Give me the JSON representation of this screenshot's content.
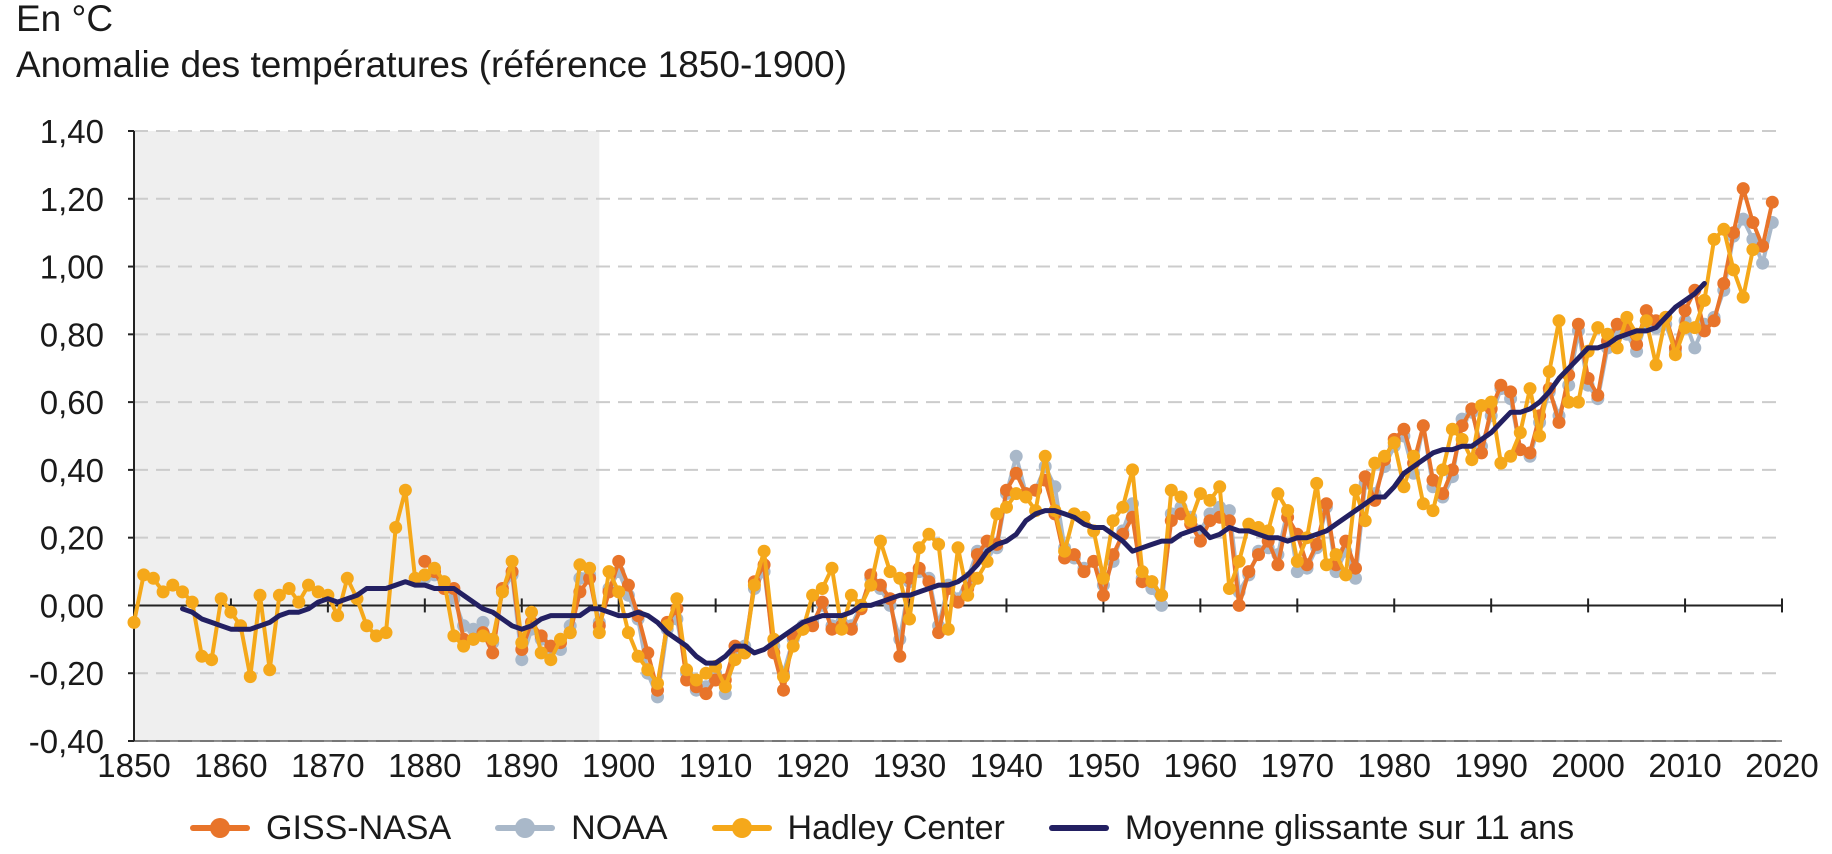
{
  "header": {
    "unit": "En °C",
    "title": "Anomalie des températures (référence 1850-1900)"
  },
  "legend": {
    "items": [
      {
        "label": "GISS-NASA",
        "color": "#e8742a",
        "marker": true
      },
      {
        "label": "NOAA",
        "color": "#a9b8c9",
        "marker": true
      },
      {
        "label": "Hadley Center",
        "color": "#f5a81a",
        "marker": true
      },
      {
        "label": "Moyenne glissante sur 11 ans",
        "color": "#232062",
        "marker": false
      }
    ]
  },
  "chart_data": {
    "type": "line",
    "title": "Anomalie des températures (référence 1850-1900)",
    "ylabel": "En °C",
    "xlim": [
      1850,
      2020
    ],
    "ylim": [
      -0.4,
      1.4
    ],
    "xticks": [
      1850,
      1860,
      1870,
      1880,
      1890,
      1900,
      1910,
      1920,
      1930,
      1940,
      1950,
      1960,
      1970,
      1980,
      1990,
      2000,
      2010,
      2020
    ],
    "xtick_labels": [
      "1850",
      "1860",
      "1870",
      "1880",
      "1890",
      "1900",
      "1910",
      "1920",
      "1930",
      "1940",
      "1950",
      "1960",
      "1970",
      "1980",
      "1990",
      "2000",
      "2010",
      "2020"
    ],
    "yticks": [
      -0.4,
      -0.2,
      0,
      0.2,
      0.4,
      0.6,
      0.8,
      1.0,
      1.2,
      1.4
    ],
    "ytick_labels": [
      "-0,40",
      "-0,20",
      "0,00",
      "0,20",
      "0,40",
      "0,60",
      "0,80",
      "1,00",
      "1,20",
      "1,40"
    ],
    "grid": "horizontal dashed",
    "legend_position": "bottom",
    "reference_period": [
      1850,
      1898
    ],
    "series": [
      {
        "name": "Hadley Center",
        "color": "#f5a81a",
        "x_start": 1850,
        "values": [
          -0.05,
          0.09,
          0.08,
          0.04,
          0.06,
          0.04,
          0.01,
          -0.15,
          -0.16,
          0.02,
          -0.02,
          -0.06,
          -0.21,
          0.03,
          -0.19,
          0.03,
          0.05,
          0.01,
          0.06,
          0.04,
          0.03,
          -0.03,
          0.08,
          0.02,
          -0.06,
          -0.09,
          -0.08,
          0.23,
          0.34,
          0.08,
          0.09,
          0.11,
          0.07,
          -0.09,
          -0.12,
          -0.1,
          -0.09,
          -0.1,
          0.04,
          0.13,
          -0.11,
          -0.02,
          -0.14,
          -0.16,
          -0.1,
          -0.08,
          0.12,
          0.11,
          -0.08,
          0.1,
          0.04,
          -0.08,
          -0.15,
          -0.19,
          -0.23,
          -0.06,
          0.02,
          -0.19,
          -0.22,
          -0.2,
          -0.18,
          -0.24,
          -0.16,
          -0.14,
          0.06,
          0.16,
          -0.1,
          -0.21,
          -0.12,
          -0.07,
          0.03,
          0.05,
          0.11,
          -0.07,
          0.03,
          0.0,
          0.06,
          0.19,
          0.1,
          0.08,
          -0.04,
          0.17,
          0.21,
          0.18,
          -0.07,
          0.17,
          0.03,
          0.08,
          0.13,
          0.27,
          0.29,
          0.33,
          0.32,
          0.28,
          0.44,
          0.28,
          0.16,
          0.27,
          0.26,
          0.22,
          0.08,
          0.25,
          0.29,
          0.4,
          0.1,
          0.07,
          0.03,
          0.34,
          0.32,
          0.25,
          0.33,
          0.31,
          0.35,
          0.05,
          0.13,
          0.24,
          0.23,
          0.22,
          0.33,
          0.28,
          0.13,
          0.2,
          0.36,
          0.12,
          0.15,
          0.09,
          0.34,
          0.25,
          0.42,
          0.44,
          0.48,
          0.35,
          0.44,
          0.3,
          0.28,
          0.4,
          0.52,
          0.49,
          0.43,
          0.59,
          0.6,
          0.42,
          0.44,
          0.51,
          0.64,
          0.5,
          0.69,
          0.84,
          0.6,
          0.6,
          0.75,
          0.82,
          0.8,
          0.76,
          0.85,
          0.8,
          0.84,
          0.71,
          0.85,
          0.74,
          0.82,
          0.82,
          0.9,
          1.08,
          1.11,
          0.99,
          0.91,
          1.05
        ]
      },
      {
        "name": "GISS-NASA",
        "color": "#e8742a",
        "x_start": 1880,
        "values": [
          0.13,
          0.1,
          0.05,
          0.05,
          -0.1,
          -0.1,
          -0.08,
          -0.14,
          0.05,
          0.1,
          -0.13,
          -0.05,
          -0.09,
          -0.12,
          -0.11,
          -0.08,
          0.04,
          0.08,
          -0.06,
          0.04,
          0.13,
          0.06,
          -0.03,
          -0.14,
          -0.25,
          -0.05,
          -0.01,
          -0.22,
          -0.24,
          -0.26,
          -0.22,
          -0.22,
          -0.12,
          -0.14,
          0.07,
          0.12,
          -0.14,
          -0.25,
          -0.09,
          -0.07,
          -0.06,
          0.01,
          -0.07,
          -0.06,
          -0.07,
          -0.01,
          0.09,
          0.06,
          0.02,
          -0.15,
          0.08,
          0.11,
          0.07,
          -0.08,
          0.05,
          0.01,
          0.05,
          0.15,
          0.19,
          0.18,
          0.34,
          0.39,
          0.33,
          0.34,
          0.37,
          0.27,
          0.14,
          0.15,
          0.1,
          0.13,
          0.03,
          0.15,
          0.21,
          0.26,
          0.07,
          0.07,
          0.03,
          0.25,
          0.27,
          0.24,
          0.19,
          0.25,
          0.26,
          0.25,
          0.0,
          0.1,
          0.15,
          0.19,
          0.12,
          0.26,
          0.21,
          0.12,
          0.18,
          0.3,
          0.12,
          0.19,
          0.11,
          0.38,
          0.31,
          0.43,
          0.49,
          0.52,
          0.42,
          0.53,
          0.37,
          0.33,
          0.4,
          0.53,
          0.58,
          0.45,
          0.58,
          0.65,
          0.63,
          0.46,
          0.45,
          0.56,
          0.64,
          0.54,
          0.68,
          0.83,
          0.67,
          0.62,
          0.78,
          0.83,
          0.82,
          0.77,
          0.87,
          0.84,
          0.85,
          0.76,
          0.87,
          0.93,
          0.81,
          0.84,
          0.95,
          1.1,
          1.23,
          1.13,
          1.06,
          1.19
        ]
      },
      {
        "name": "NOAA",
        "color": "#a9b8c9",
        "x_start": 1880,
        "values": [
          0.08,
          0.09,
          0.07,
          0.02,
          -0.06,
          -0.07,
          -0.05,
          -0.11,
          0.04,
          0.09,
          -0.16,
          -0.07,
          -0.1,
          -0.13,
          -0.13,
          -0.06,
          0.08,
          0.09,
          -0.05,
          0.05,
          0.1,
          0.03,
          -0.04,
          -0.2,
          -0.27,
          -0.07,
          -0.04,
          -0.2,
          -0.25,
          -0.24,
          -0.2,
          -0.26,
          -0.14,
          -0.12,
          0.05,
          0.1,
          -0.12,
          -0.2,
          -0.1,
          -0.06,
          -0.05,
          0.0,
          -0.06,
          -0.05,
          -0.06,
          0.0,
          0.08,
          0.05,
          0.0,
          -0.1,
          0.07,
          0.1,
          0.08,
          -0.06,
          0.06,
          0.02,
          0.08,
          0.16,
          0.16,
          0.17,
          0.33,
          0.44,
          0.33,
          0.34,
          0.41,
          0.35,
          0.17,
          0.14,
          0.11,
          0.13,
          0.06,
          0.13,
          0.22,
          0.3,
          0.08,
          0.05,
          0.0,
          0.27,
          0.29,
          0.26,
          0.22,
          0.27,
          0.29,
          0.28,
          0.04,
          0.09,
          0.16,
          0.17,
          0.15,
          0.28,
          0.1,
          0.11,
          0.17,
          0.29,
          0.1,
          0.16,
          0.08,
          0.36,
          0.33,
          0.41,
          0.47,
          0.5,
          0.39,
          0.53,
          0.35,
          0.32,
          0.38,
          0.55,
          0.57,
          0.47,
          0.56,
          0.64,
          0.61,
          0.46,
          0.44,
          0.54,
          0.63,
          0.56,
          0.65,
          0.81,
          0.65,
          0.61,
          0.76,
          0.81,
          0.8,
          0.75,
          0.84,
          0.82,
          0.83,
          0.75,
          0.84,
          0.76,
          0.83,
          0.85,
          0.93,
          1.09,
          1.14,
          1.08,
          1.01,
          1.13
        ]
      },
      {
        "name": "Moyenne glissante sur 11 ans",
        "color": "#232062",
        "x_start": 1855,
        "values": [
          -0.01,
          -0.02,
          -0.04,
          -0.05,
          -0.06,
          -0.07,
          -0.07,
          -0.07,
          -0.06,
          -0.05,
          -0.03,
          -0.02,
          -0.02,
          -0.01,
          0.01,
          0.02,
          0.01,
          0.02,
          0.03,
          0.05,
          0.05,
          0.05,
          0.06,
          0.07,
          0.06,
          0.06,
          0.05,
          0.05,
          0.05,
          0.03,
          0.01,
          -0.01,
          -0.02,
          -0.04,
          -0.06,
          -0.07,
          -0.06,
          -0.04,
          -0.03,
          -0.03,
          -0.03,
          -0.03,
          -0.01,
          -0.01,
          -0.02,
          -0.03,
          -0.03,
          -0.02,
          -0.03,
          -0.05,
          -0.08,
          -0.1,
          -0.12,
          -0.15,
          -0.17,
          -0.17,
          -0.15,
          -0.12,
          -0.12,
          -0.14,
          -0.13,
          -0.11,
          -0.09,
          -0.07,
          -0.05,
          -0.04,
          -0.03,
          -0.03,
          -0.03,
          -0.02,
          0.0,
          0.0,
          0.01,
          0.02,
          0.03,
          0.03,
          0.04,
          0.05,
          0.06,
          0.06,
          0.07,
          0.09,
          0.12,
          0.16,
          0.18,
          0.19,
          0.21,
          0.25,
          0.27,
          0.28,
          0.28,
          0.27,
          0.26,
          0.24,
          0.23,
          0.23,
          0.21,
          0.19,
          0.16,
          0.17,
          0.18,
          0.19,
          0.19,
          0.21,
          0.22,
          0.23,
          0.2,
          0.21,
          0.23,
          0.22,
          0.22,
          0.21,
          0.2,
          0.2,
          0.19,
          0.2,
          0.2,
          0.21,
          0.22,
          0.24,
          0.26,
          0.28,
          0.3,
          0.32,
          0.32,
          0.35,
          0.39,
          0.41,
          0.43,
          0.45,
          0.46,
          0.46,
          0.47,
          0.47,
          0.49,
          0.51,
          0.54,
          0.57,
          0.57,
          0.58,
          0.6,
          0.63,
          0.67,
          0.7,
          0.73,
          0.76,
          0.76,
          0.77,
          0.79,
          0.8,
          0.81,
          0.81,
          0.82,
          0.85,
          0.88,
          0.9,
          0.92,
          0.95
        ]
      }
    ]
  }
}
